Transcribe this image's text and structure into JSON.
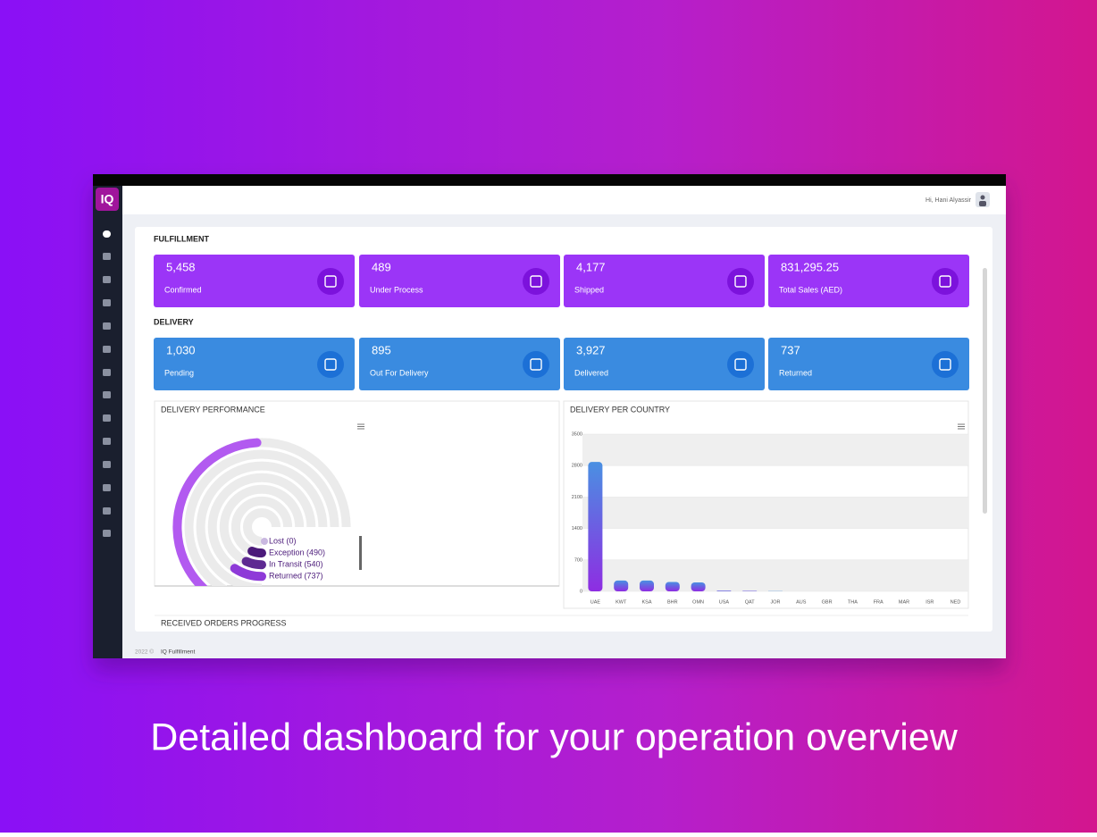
{
  "header": {
    "logo": "IQ",
    "greeting": "Hi, Hani Alyassir"
  },
  "fulfillment": {
    "title": "FULFILLMENT",
    "color": "#9b35f7",
    "icon_color": "#7c12dc",
    "cards": [
      {
        "value": "5,458",
        "label": "Confirmed"
      },
      {
        "value": "489",
        "label": "Under Process"
      },
      {
        "value": "4,177",
        "label": "Shipped"
      },
      {
        "value": "831,295.25",
        "label": "Total Sales (AED)"
      }
    ]
  },
  "delivery": {
    "title": "DELIVERY",
    "color": "#3a8be0",
    "icon_color": "#1c70d6",
    "cards": [
      {
        "value": "1,030",
        "label": "Pending"
      },
      {
        "value": "895",
        "label": "Out For Delivery"
      },
      {
        "value": "3,927",
        "label": "Delivered"
      },
      {
        "value": "737",
        "label": "Returned"
      }
    ]
  },
  "chart_data": [
    {
      "type": "radialBar",
      "title": "DELIVERY PERFORMANCE",
      "values": [
        0,
        490,
        540,
        737,
        null,
        null,
        3927
      ],
      "value_labels": [
        "Lost (0)",
        "Exception (490)",
        "In Transit (540)",
        "Returned (737)",
        null,
        null,
        null
      ],
      "colors": [
        "#c9b8e0",
        "#4b1a7a",
        "#5e2a92",
        "#8e3ad8",
        "#9b45e6",
        "#a64ff0",
        "#b25af0"
      ],
      "rlim": [
        0,
        6000
      ]
    },
    {
      "type": "bar",
      "title": "DELIVERY PER COUNTRY",
      "categories": [
        "UAE",
        "KWT",
        "KSA",
        "BHR",
        "OMN",
        "USA",
        "QAT",
        "JOR",
        "AUS",
        "GBR",
        "THA",
        "FRA",
        "MAR",
        "ISR",
        "NED"
      ],
      "values": [
        2880,
        240,
        240,
        210,
        200,
        15,
        10,
        5,
        0,
        0,
        0,
        0,
        0,
        0,
        0
      ],
      "gradient": [
        "#4a90e2",
        "#8e2de2"
      ],
      "ylim": [
        0,
        3500
      ],
      "yticks": [
        0,
        700,
        1400,
        2100,
        2800,
        3500
      ],
      "grid": true
    }
  ],
  "received": {
    "title": "RECEIVED ORDERS PROGRESS"
  },
  "footer": {
    "year": "2022 ©",
    "brand": "IQ Fulfillment"
  },
  "caption": "Detailed dashboard for your operation overview"
}
